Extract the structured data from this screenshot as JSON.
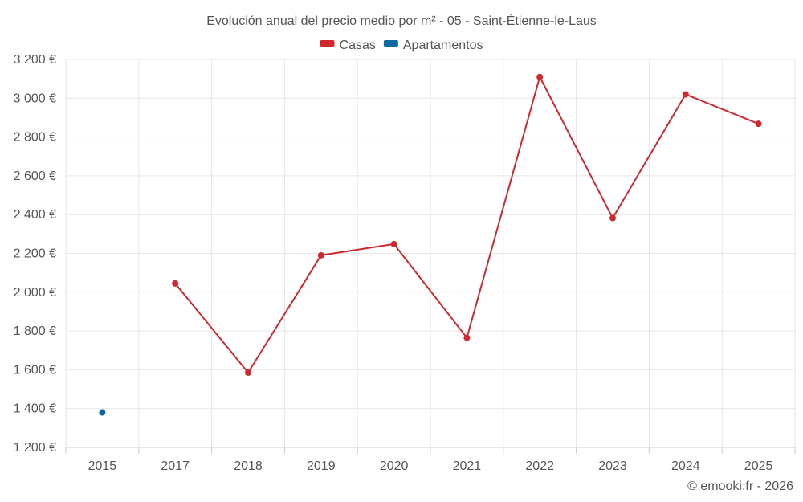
{
  "chart_data": {
    "type": "line",
    "title": "Evolución anual del precio medio por m² - 05 - Saint-Étienne-le-Laus",
    "categories": [
      "2015",
      "2017",
      "2018",
      "2019",
      "2020",
      "2021",
      "2022",
      "2023",
      "2024",
      "2025"
    ],
    "series": [
      {
        "name": "Casas",
        "color": "#d0282d",
        "values": [
          null,
          2045,
          1585,
          2190,
          2248,
          1765,
          3110,
          2382,
          3020,
          2868
        ]
      },
      {
        "name": "Apartamentos",
        "color": "#0b69a3",
        "values": [
          1380,
          null,
          null,
          null,
          null,
          null,
          null,
          null,
          null,
          null
        ]
      }
    ],
    "ylim": [
      1200,
      3200
    ],
    "yticks": [
      1200,
      1400,
      1600,
      1800,
      2000,
      2200,
      2400,
      2600,
      2800,
      3000,
      3200
    ],
    "ytick_labels": [
      "1 200 €",
      "1 400 €",
      "1 600 €",
      "1 800 €",
      "2 000 €",
      "2 200 €",
      "2 400 €",
      "2 600 €",
      "2 800 €",
      "3 000 €",
      "3 200 €"
    ],
    "xlabel": "",
    "ylabel": "",
    "grid": true,
    "legend_position": "top-center"
  },
  "credit": "© emooki.fr - 2026"
}
